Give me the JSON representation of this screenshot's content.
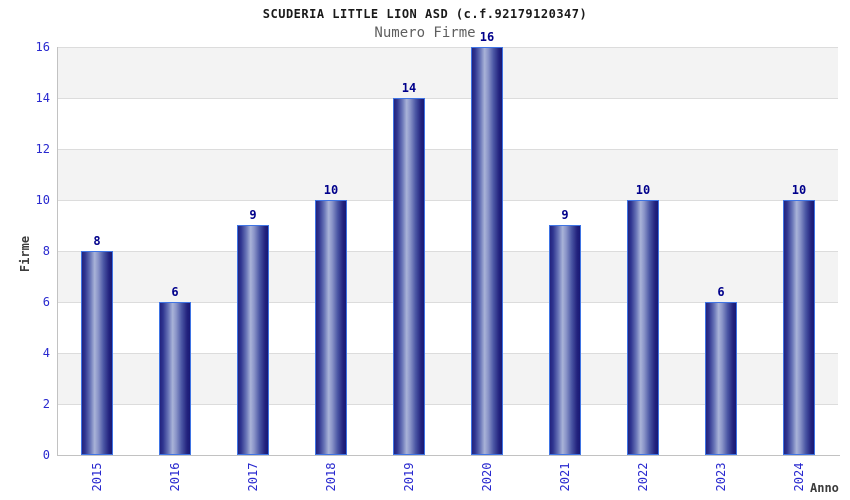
{
  "chart_data": {
    "type": "bar",
    "title": "SCUDERIA LITTLE LION ASD (c.f.92179120347)",
    "subtitle": "Numero Firme",
    "xlabel": "Anno",
    "ylabel": "Firme",
    "categories": [
      "2015",
      "2016",
      "2017",
      "2018",
      "2019",
      "2020",
      "2021",
      "2022",
      "2023",
      "2024"
    ],
    "values": [
      8,
      6,
      9,
      10,
      14,
      16,
      9,
      10,
      6,
      10
    ],
    "ylim": [
      0,
      16
    ],
    "ytick_step": 2,
    "legend": "none",
    "grid": "alternating horizontal bands with light gridlines at each tick"
  },
  "colors": {
    "tick_label": "#2929cf",
    "value_label": "#00008b",
    "bar_dark": "#23237e",
    "bar_light": "#a9b3d8",
    "bar_border": "#3f74e4",
    "band_gray": "#f3f3f3",
    "gridline": "#dcdcdc",
    "axis_line": "#c2c2c2",
    "title_color": "#1a1a1a",
    "subtitle_color": "#5f5f5f",
    "axis_label_color": "#3c3c3c"
  }
}
